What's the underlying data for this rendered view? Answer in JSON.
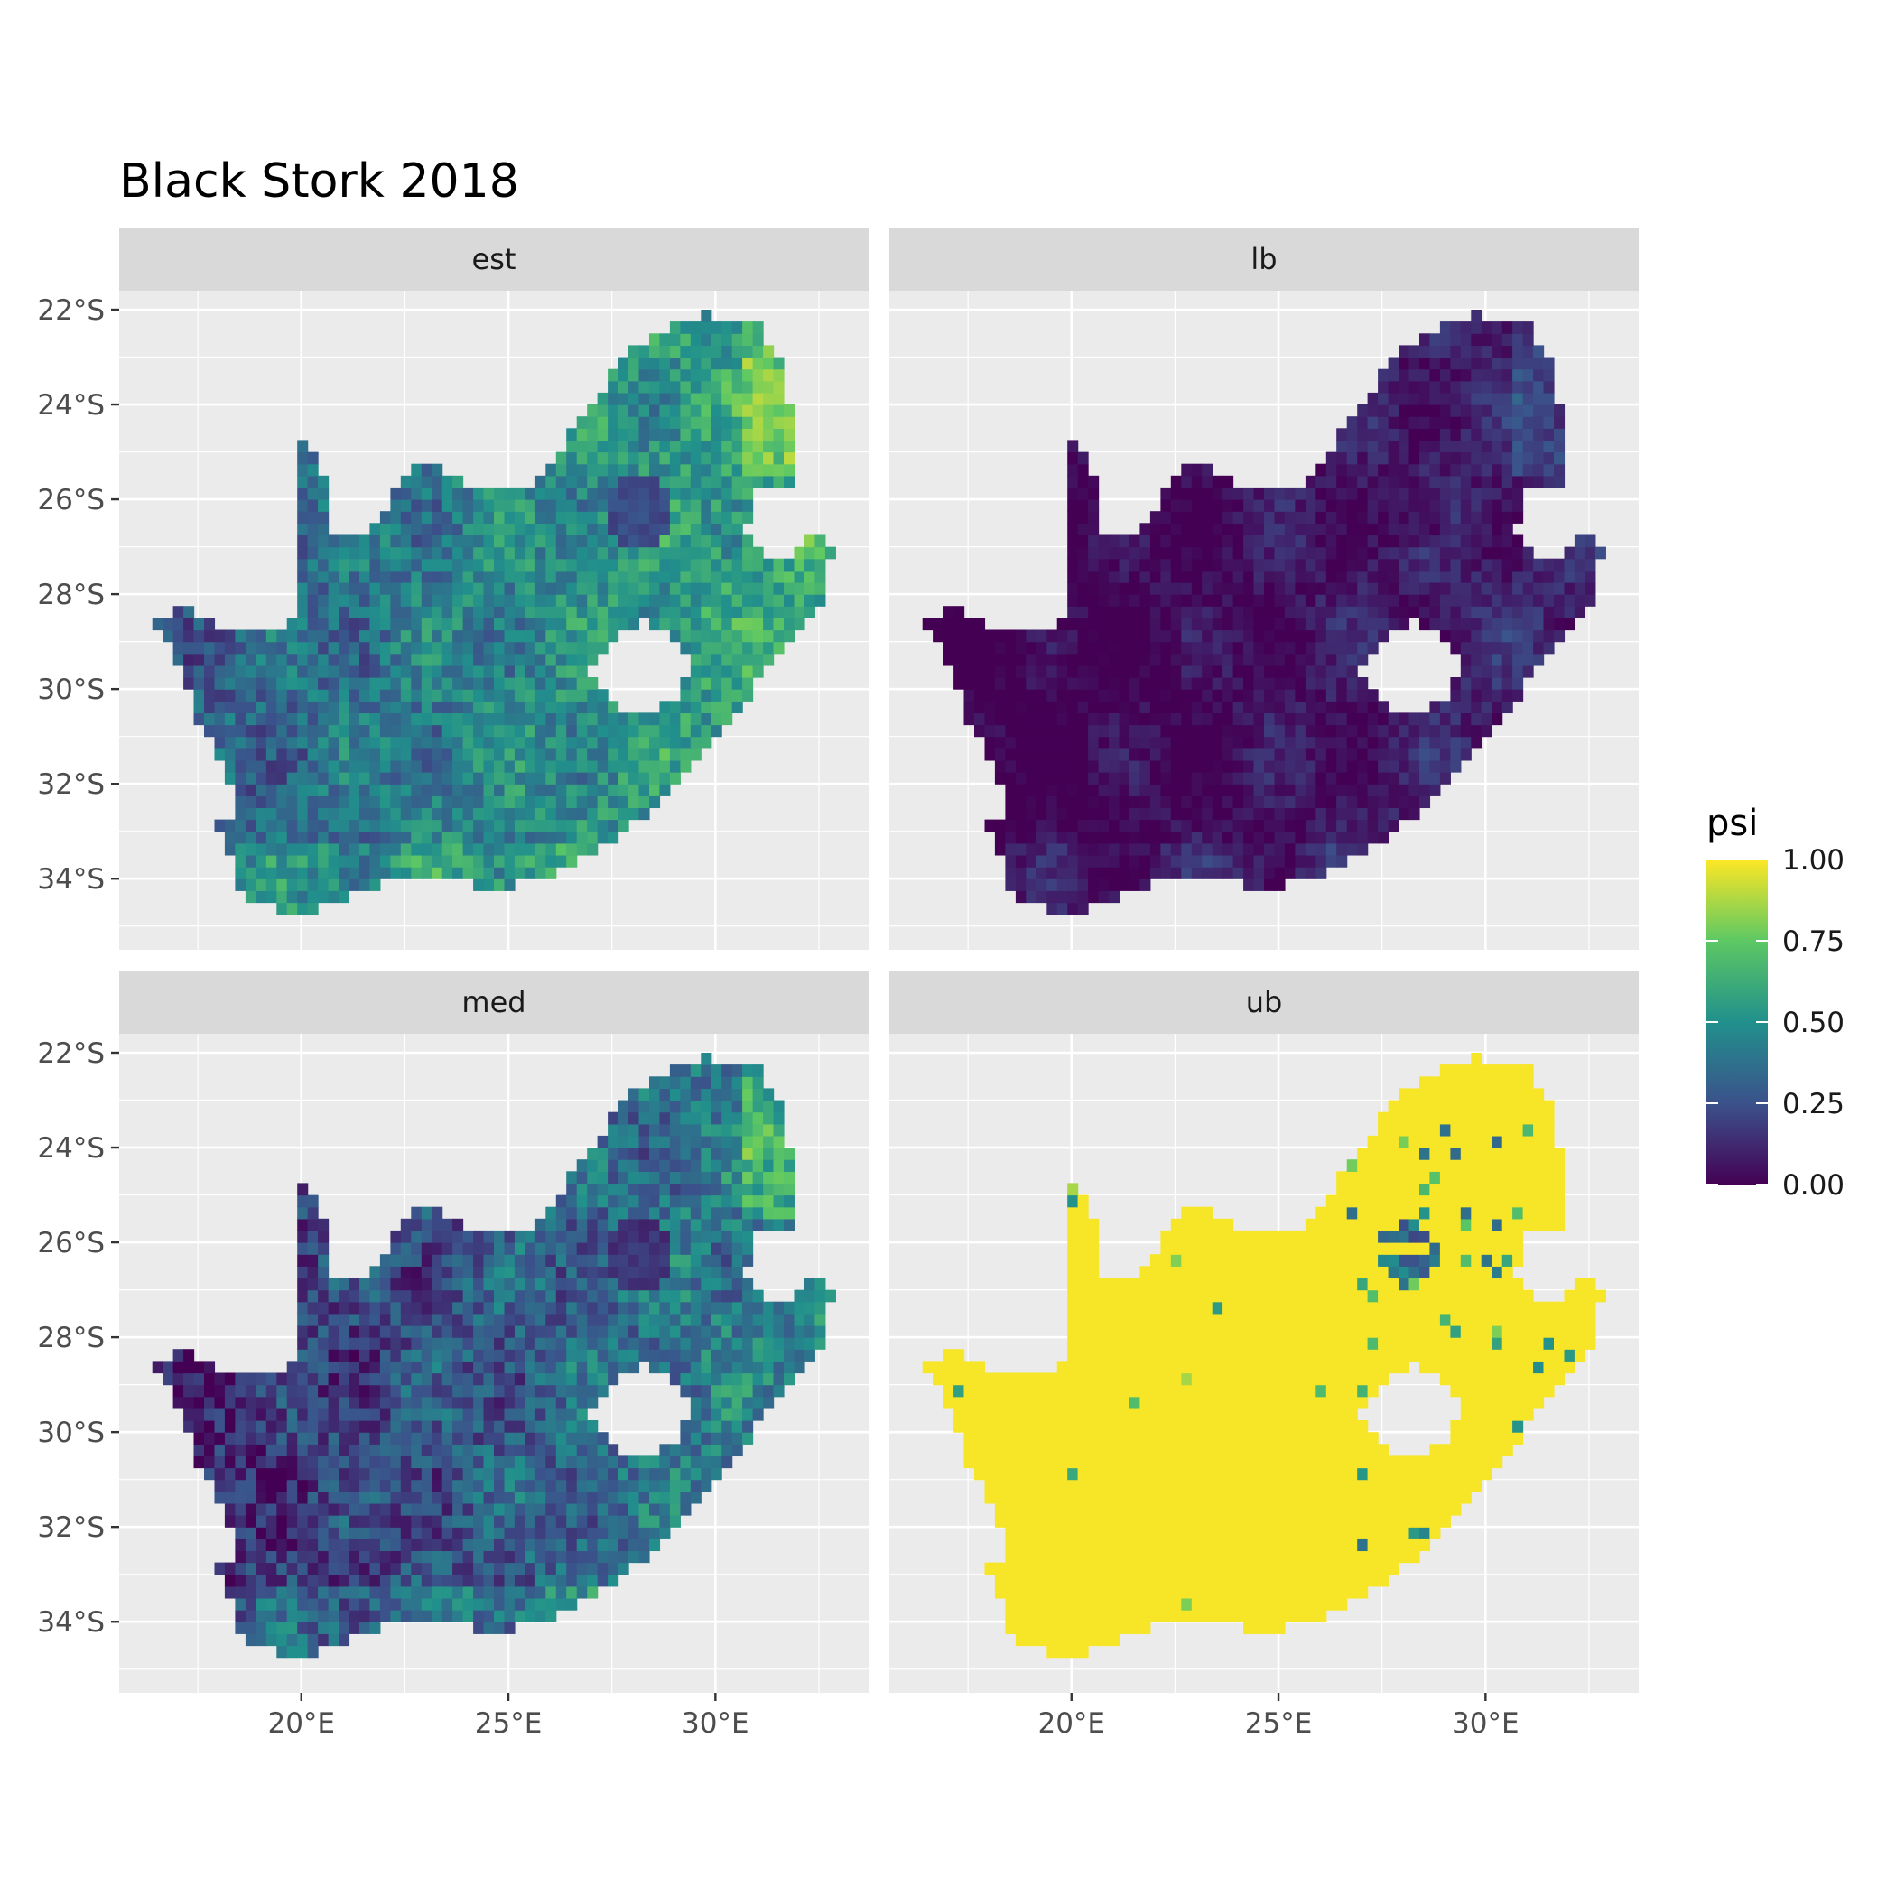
{
  "title": "Black Stork 2018",
  "panels": [
    {
      "label": "est",
      "mean": 0.5,
      "spread": 0.5,
      "hotspot": 0.18
    },
    {
      "label": "lb",
      "mean": 0.07,
      "spread": 0.25,
      "hotspot": 0.0
    },
    {
      "label": "med",
      "mean": 0.34,
      "spread": 0.55,
      "hotspot": 0.1
    },
    {
      "label": "ub",
      "mean": 0.99,
      "spread": 0.02,
      "hotspot": 0.25
    }
  ],
  "axes": {
    "x_ticks": [
      {
        "value": 20,
        "label": "20°E"
      },
      {
        "value": 25,
        "label": "25°E"
      },
      {
        "value": 30,
        "label": "30°E"
      }
    ],
    "y_ticks": [
      {
        "value": -22,
        "label": "22°S"
      },
      {
        "value": -24,
        "label": "24°S"
      },
      {
        "value": -26,
        "label": "26°S"
      },
      {
        "value": -28,
        "label": "28°S"
      },
      {
        "value": -30,
        "label": "30°S"
      },
      {
        "value": -32,
        "label": "32°S"
      },
      {
        "value": -34,
        "label": "34°S"
      }
    ],
    "x_range": [
      15.6,
      33.7
    ],
    "y_range": [
      -35.5,
      -21.6
    ]
  },
  "legend": {
    "title": "psi",
    "ticks": [
      {
        "value": 1.0,
        "label": "1.00"
      },
      {
        "value": 0.75,
        "label": "0.75"
      },
      {
        "value": 0.5,
        "label": "0.50"
      },
      {
        "value": 0.25,
        "label": "0.25"
      },
      {
        "value": 0.0,
        "label": "0.00"
      }
    ],
    "palette": [
      "#440154",
      "#3b528b",
      "#21908c",
      "#5dc863",
      "#fde725"
    ]
  },
  "colors": {
    "panel_bg": "#ebebeb",
    "strip_bg": "#d9d9d9",
    "grid": "#ffffff"
  }
}
